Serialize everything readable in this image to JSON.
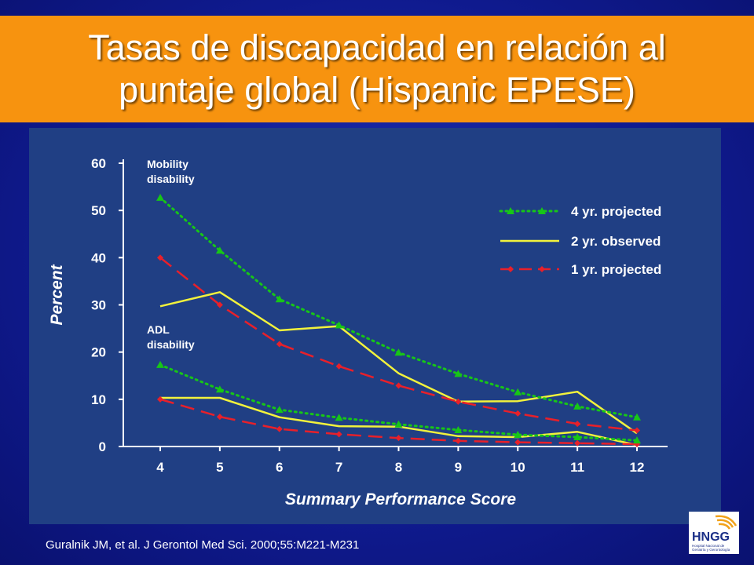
{
  "slide": {
    "title_line1": "Tasas de discapacidad en relación al",
    "title_line2": "puntaje global (Hispanic EPESE)",
    "citation": "Guralnik JM, et al. J Gerontol Med Sci. 2000;55:M221-M231",
    "logo_text": "HNGG",
    "logo_subtext_1": "Hospital Nacional de",
    "logo_subtext_2": "Geriatría y Gerontología"
  },
  "colors": {
    "title_bar": "#f7930f",
    "chart_bg": "#203f84",
    "four_yr": "#17c617",
    "two_yr": "#f2f23c",
    "one_yr": "#e8202a",
    "axis": "#ffffff"
  },
  "chart_data": {
    "type": "line",
    "xlabel": "Summary Performance Score",
    "ylabel": "Percent",
    "x": [
      4,
      5,
      6,
      7,
      8,
      9,
      10,
      11,
      12
    ],
    "ylim": [
      0,
      60
    ],
    "yticks": [
      0,
      10,
      20,
      30,
      40,
      50,
      60
    ],
    "grid": false,
    "legend_position": "top-right",
    "legend": [
      "4 yr. projected",
      "2 yr. observed",
      "1 yr. projected"
    ],
    "annotations": [
      {
        "line1": "Mobility",
        "line2": "disability"
      },
      {
        "line1": "ADL",
        "line2": "disability"
      }
    ],
    "series": [
      {
        "name": "4 yr. projected",
        "group": "Mobility",
        "style": "dotted-triangle",
        "values": [
          52.7,
          41.5,
          31.2,
          25.7,
          19.9,
          15.4,
          11.5,
          8.5,
          6.2
        ]
      },
      {
        "name": "2 yr. observed",
        "group": "Mobility",
        "style": "solid",
        "values": [
          29.7,
          32.7,
          24.6,
          25.5,
          15.5,
          9.5,
          9.6,
          11.6,
          2.8
        ]
      },
      {
        "name": "1 yr. projected",
        "group": "Mobility",
        "style": "dashed-diamond",
        "values": [
          40.0,
          30.0,
          21.7,
          17.0,
          12.9,
          9.5,
          7.0,
          4.8,
          3.4
        ]
      },
      {
        "name": "4 yr. projected",
        "group": "ADL",
        "style": "dotted-triangle",
        "values": [
          17.3,
          12.1,
          7.8,
          6.1,
          4.7,
          3.5,
          2.5,
          2.0,
          1.3
        ]
      },
      {
        "name": "2 yr. observed",
        "group": "ADL",
        "style": "solid",
        "values": [
          10.3,
          10.3,
          6.2,
          4.3,
          4.2,
          2.2,
          2.0,
          3.1,
          0.3
        ]
      },
      {
        "name": "1 yr. projected",
        "group": "ADL",
        "style": "dashed-diamond",
        "values": [
          10.0,
          6.3,
          3.7,
          2.6,
          1.8,
          1.2,
          0.9,
          0.7,
          0.5
        ]
      }
    ]
  }
}
